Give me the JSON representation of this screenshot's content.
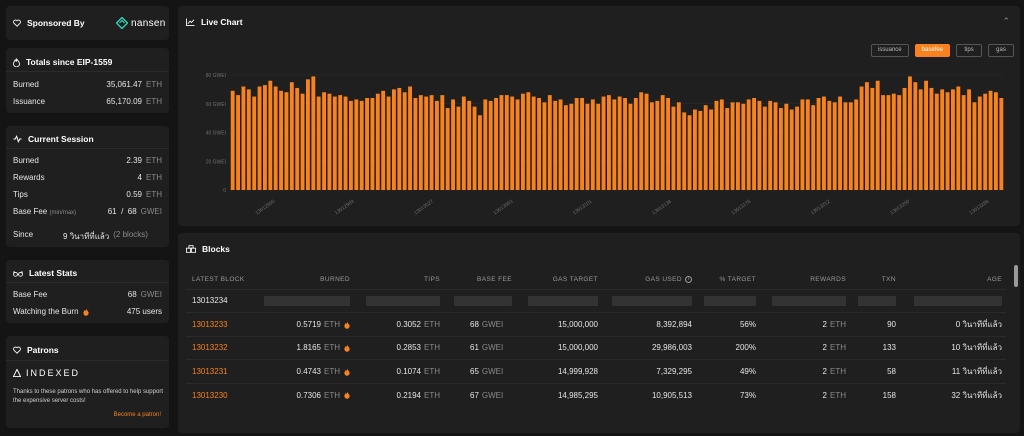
{
  "sidebar": {
    "sponsor": {
      "title": "Sponsored By",
      "brand": "nansen"
    },
    "totals": {
      "title": "Totals since EIP-1559",
      "rows": [
        {
          "label": "Burned",
          "value": "35,061.47",
          "unit": "ETH"
        },
        {
          "label": "Issuance",
          "value": "65,170.09",
          "unit": "ETH"
        }
      ]
    },
    "session": {
      "title": "Current Session",
      "burned": {
        "label": "Burned",
        "value": "2.39",
        "unit": "ETH"
      },
      "rewards": {
        "label": "Rewards",
        "value": "4",
        "unit": "ETH"
      },
      "tips": {
        "label": "Tips",
        "value": "0.59",
        "unit": "ETH"
      },
      "basefee": {
        "label": "Base Fee",
        "sublabel": "(min/max)",
        "value": "61  /  68",
        "unit": "GWEI"
      },
      "since": {
        "label": "Since",
        "value": "9 วินาทีที่แล้ว",
        "extra": "(2 blocks)"
      }
    },
    "latest": {
      "title": "Latest Stats",
      "basefee": {
        "label": "Base Fee",
        "value": "68",
        "unit": "GWEI"
      },
      "watching": {
        "label": "Watching the Burn",
        "value": "475 users"
      }
    },
    "patrons": {
      "title": "Patrons",
      "sponsor_name": "INDEXED",
      "text": "Thanks to these patrons who has offered to help support the expensive server costs!",
      "link": "Become a patron!"
    }
  },
  "chart": {
    "title": "Live Chart",
    "toggles": [
      "issuance",
      "basefee",
      "tips",
      "gas"
    ],
    "active_toggle": "basefee",
    "bar_color": "#f7821e"
  },
  "chart_data": {
    "type": "bar",
    "ylim": [
      0,
      80
    ],
    "y_ticks": [
      "0",
      "20 GWEI",
      "40 GWEI",
      "60 GWEI",
      "80 GWEI"
    ],
    "x_tick_labels": [
      "13012950",
      "13012989",
      "13013027",
      "13013063",
      "13013101",
      "13013138",
      "13013176",
      "13013212",
      "13013250",
      "13013288"
    ],
    "values": [
      69,
      66,
      72,
      70,
      65,
      72,
      73,
      76,
      72,
      69,
      68,
      75,
      71,
      67,
      77,
      79,
      65,
      68,
      67,
      65,
      66,
      65,
      62,
      63,
      62,
      64,
      64,
      67,
      69,
      65,
      70,
      71,
      68,
      72,
      64,
      66,
      65,
      66,
      62,
      66,
      57,
      63,
      58,
      65,
      62,
      58,
      52,
      63,
      62,
      64,
      66,
      66,
      65,
      63,
      67,
      68,
      65,
      64,
      61,
      66,
      62,
      63,
      59,
      60,
      64,
      64,
      60,
      63,
      60,
      65,
      66,
      63,
      65,
      64,
      60,
      64,
      68,
      67,
      61,
      62,
      66,
      64,
      58,
      61,
      54,
      52,
      56,
      55,
      59,
      56,
      62,
      63,
      57,
      61,
      61,
      60,
      63,
      64,
      62,
      58,
      62,
      61,
      57,
      60,
      56,
      58,
      63,
      63,
      59,
      64,
      65,
      62,
      61,
      65,
      61,
      61,
      63,
      72,
      75,
      71,
      76,
      66,
      66,
      67,
      66,
      71,
      79,
      75,
      70,
      76,
      71,
      67,
      70,
      68,
      70,
      72,
      66,
      70,
      61,
      65,
      67,
      69,
      68,
      64
    ]
  },
  "blocks": {
    "title": "Blocks",
    "headers": [
      "LATEST BLOCK",
      "BURNED",
      "TIPS",
      "BASE FEE",
      "GAS TARGET",
      "GAS USED",
      "% TARGET",
      "REWARDS",
      "TXN",
      "AGE"
    ],
    "pending_block": "13013234",
    "rows": [
      {
        "block": "13013233",
        "burned": "0.5719",
        "tips": "0.3052",
        "basefee": "68",
        "gas_target": "15,000,000",
        "gas_used": "8,392,894",
        "pct_target": "56%",
        "rewards": "2",
        "txn": "90",
        "age": "0 วินาทีที่แล้ว"
      },
      {
        "block": "13013232",
        "burned": "1.8165",
        "tips": "0.2853",
        "basefee": "61",
        "gas_target": "15,000,000",
        "gas_used": "29,986,003",
        "pct_target": "200%",
        "rewards": "2",
        "txn": "133",
        "age": "10 วินาทีที่แล้ว"
      },
      {
        "block": "13013231",
        "burned": "0.4743",
        "tips": "0.1074",
        "basefee": "65",
        "gas_target": "14,999,928",
        "gas_used": "7,329,295",
        "pct_target": "49%",
        "rewards": "2",
        "txn": "58",
        "age": "11 วินาทีที่แล้ว"
      },
      {
        "block": "13013230",
        "burned": "0.7306",
        "tips": "0.2194",
        "basefee": "67",
        "gas_target": "14,985,295",
        "gas_used": "10,905,513",
        "pct_target": "73%",
        "rewards": "2",
        "txn": "158",
        "age": "32 วินาทีที่แล้ว"
      }
    ],
    "units": {
      "eth": "ETH",
      "gwei": "GWEI"
    }
  }
}
